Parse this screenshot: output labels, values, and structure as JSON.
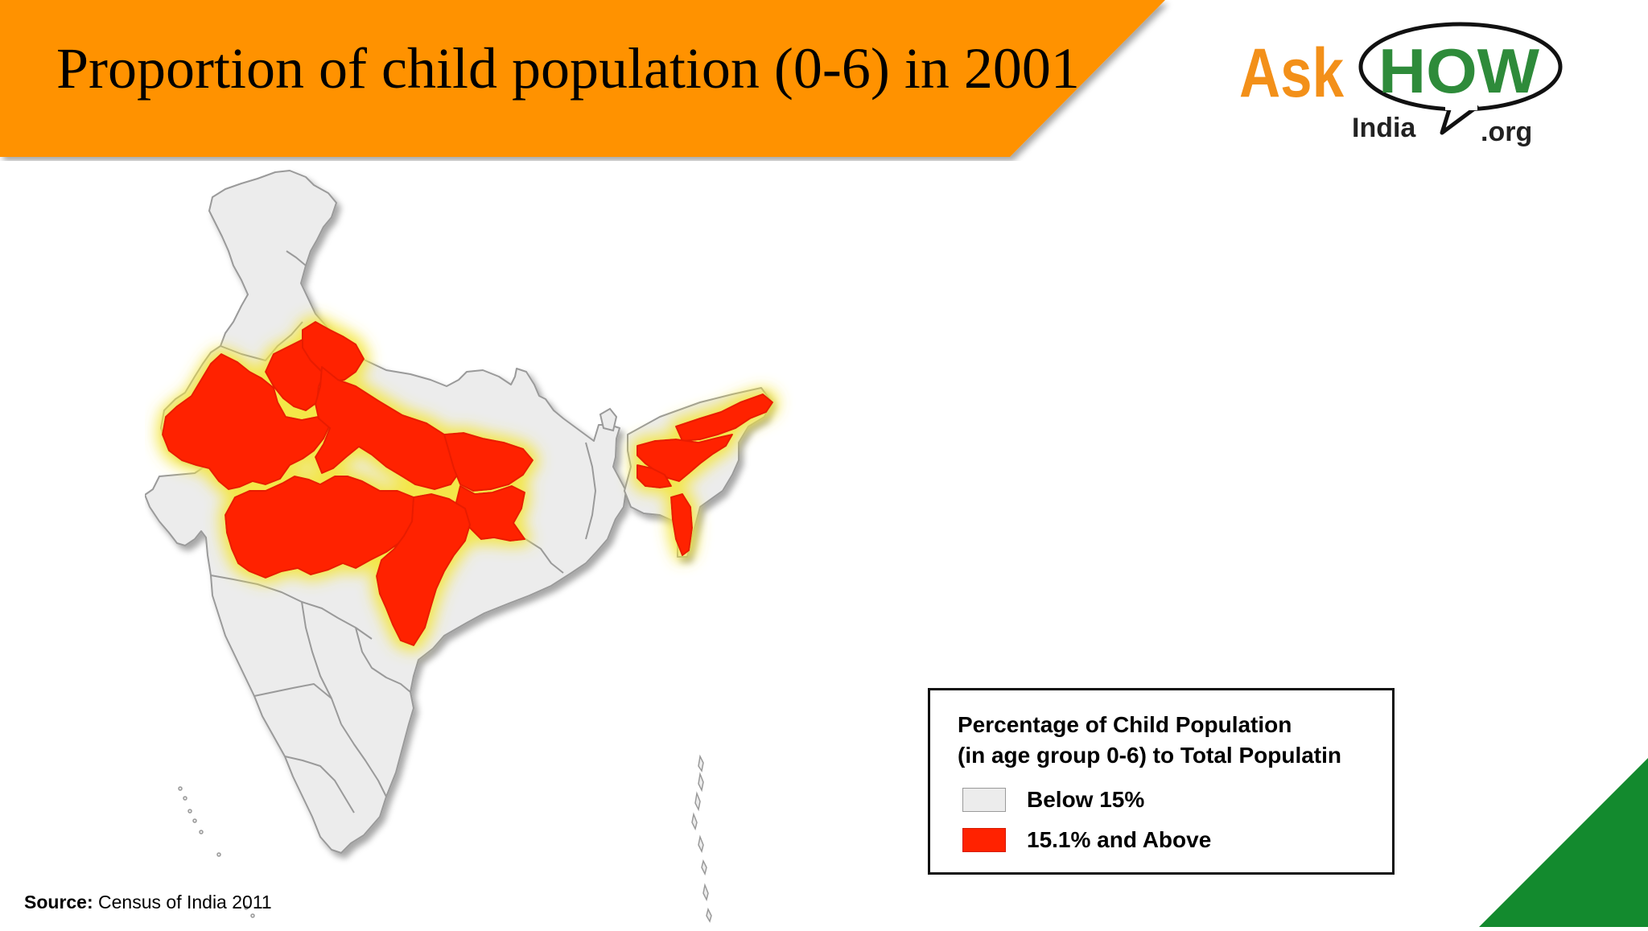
{
  "title": "Proportion of child population (0-6) in 2001",
  "logo": {
    "ask": "Ask",
    "how": "HOW",
    "india": "India",
    "org": ".org"
  },
  "legend": {
    "title_line1": "Percentage of Child Population",
    "title_line2": "(in age group 0-6) to Total Populatin",
    "items": [
      {
        "label": "Below 15%",
        "color": "#ececec"
      },
      {
        "label": "15.1% and Above",
        "color": "#ff2200"
      }
    ]
  },
  "source": {
    "label": "Source:",
    "text": " Census of India 2011"
  },
  "colors": {
    "banner": "#ff9200",
    "map_base": "#ececec",
    "map_high": "#ff2200",
    "glow": "#f4e640",
    "corner": "#138a2e",
    "logo_orange": "#f39019",
    "logo_green": "#2e8b3a"
  },
  "regions_highlighted": [
    "Rajasthan",
    "Haryana-Delhi",
    "Uttarakhand",
    "Uttar Pradesh",
    "Bihar",
    "Jharkhand",
    "Madhya Pradesh",
    "Chhattisgarh",
    "Arunachal Pradesh",
    "Assam",
    "Meghalaya",
    "Mizoram"
  ]
}
